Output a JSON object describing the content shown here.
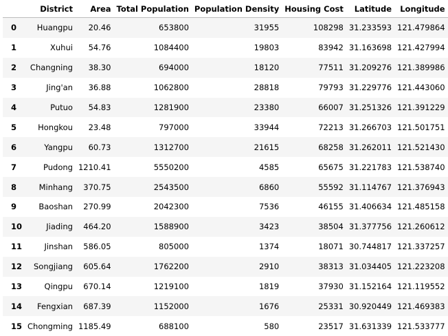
{
  "table": {
    "index_header": "",
    "columns": [
      "District",
      "Area",
      "Total Population",
      "Population Density",
      "Housing Cost",
      "Latitude",
      "Longitude"
    ],
    "rows": [
      {
        "index": "0",
        "cells": [
          "Huangpu",
          "20.46",
          "653800",
          "31955",
          "108298",
          "31.233593",
          "121.479864"
        ]
      },
      {
        "index": "1",
        "cells": [
          "Xuhui",
          "54.76",
          "1084400",
          "19803",
          "83942",
          "31.163698",
          "121.427994"
        ]
      },
      {
        "index": "2",
        "cells": [
          "Changning",
          "38.30",
          "694000",
          "18120",
          "77511",
          "31.209276",
          "121.389986"
        ]
      },
      {
        "index": "3",
        "cells": [
          "Jing'an",
          "36.88",
          "1062800",
          "28818",
          "79793",
          "31.229776",
          "121.443060"
        ]
      },
      {
        "index": "4",
        "cells": [
          "Putuo",
          "54.83",
          "1281900",
          "23380",
          "66007",
          "31.251326",
          "121.391229"
        ]
      },
      {
        "index": "5",
        "cells": [
          "Hongkou",
          "23.48",
          "797000",
          "33944",
          "72213",
          "31.266703",
          "121.501751"
        ]
      },
      {
        "index": "6",
        "cells": [
          "Yangpu",
          "60.73",
          "1312700",
          "21615",
          "68258",
          "31.262011",
          "121.521430"
        ]
      },
      {
        "index": "7",
        "cells": [
          "Pudong",
          "1210.41",
          "5550200",
          "4585",
          "65675",
          "31.221783",
          "121.538740"
        ]
      },
      {
        "index": "8",
        "cells": [
          "Minhang",
          "370.75",
          "2543500",
          "6860",
          "55592",
          "31.114767",
          "121.376943"
        ]
      },
      {
        "index": "9",
        "cells": [
          "Baoshan",
          "270.99",
          "2042300",
          "7536",
          "46155",
          "31.406634",
          "121.485158"
        ]
      },
      {
        "index": "10",
        "cells": [
          "Jiading",
          "464.20",
          "1588900",
          "3423",
          "38504",
          "31.377756",
          "121.260612"
        ]
      },
      {
        "index": "11",
        "cells": [
          "Jinshan",
          "586.05",
          "805000",
          "1374",
          "18071",
          "30.744817",
          "121.337257"
        ]
      },
      {
        "index": "12",
        "cells": [
          "Songjiang",
          "605.64",
          "1762200",
          "2910",
          "38313",
          "31.034405",
          "121.223208"
        ]
      },
      {
        "index": "13",
        "cells": [
          "Qingpu",
          "670.14",
          "1219100",
          "1819",
          "37930",
          "31.152164",
          "121.119552"
        ]
      },
      {
        "index": "14",
        "cells": [
          "Fengxian",
          "687.39",
          "1152000",
          "1676",
          "25331",
          "30.920449",
          "121.469383"
        ]
      },
      {
        "index": "15",
        "cells": [
          "Chongming",
          "1185.49",
          "688100",
          "580",
          "23517",
          "31.631339",
          "121.533777"
        ]
      }
    ]
  }
}
